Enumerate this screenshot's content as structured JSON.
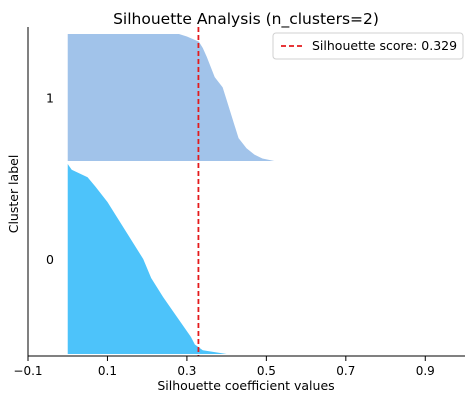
{
  "chart_data": {
    "type": "area",
    "title": "Silhouette Analysis (n_clusters=2)",
    "xlabel": "Silhouette coefficient values",
    "ylabel": "Cluster label",
    "xlim": [
      -0.1,
      1.0
    ],
    "x_ticks": [
      {
        "value": -0.1,
        "label": "−0.1"
      },
      {
        "value": 0.1,
        "label": "0.1"
      },
      {
        "value": 0.3,
        "label": "0.3"
      },
      {
        "value": 0.5,
        "label": "0.5"
      },
      {
        "value": 0.7,
        "label": "0.7"
      },
      {
        "value": 0.9,
        "label": "0.9"
      }
    ],
    "grid": false,
    "legend": {
      "placement": "top-right",
      "entries": [
        {
          "label": "Silhouette score: 0.329",
          "color": "#e41a1c",
          "style": "dashed"
        }
      ]
    },
    "reference_line": {
      "value": 0.329,
      "color": "#e41a1c",
      "style": "dashed"
    },
    "clusters": [
      {
        "label": "0",
        "color": "#4dc3fa",
        "profile": [
          [
            0.0,
            0.4
          ],
          [
            0.02,
            0.34
          ],
          [
            0.05,
            0.32
          ],
          [
            0.09,
            0.31
          ],
          [
            0.15,
            0.29
          ],
          [
            0.21,
            0.27
          ],
          [
            0.3,
            0.24
          ],
          [
            0.4,
            0.21
          ],
          [
            0.5,
            0.19
          ],
          [
            0.6,
            0.16
          ],
          [
            0.7,
            0.13
          ],
          [
            0.8,
            0.1
          ],
          [
            0.88,
            0.07
          ],
          [
            0.93,
            0.05
          ],
          [
            0.97,
            0.01
          ],
          [
            1.0,
            0.0
          ]
        ]
      },
      {
        "label": "1",
        "color": "#a1c3ea",
        "profile": [
          [
            0.0,
            0.52
          ],
          [
            0.02,
            0.49
          ],
          [
            0.05,
            0.47
          ],
          [
            0.1,
            0.45
          ],
          [
            0.18,
            0.43
          ],
          [
            0.28,
            0.42
          ],
          [
            0.38,
            0.41
          ],
          [
            0.48,
            0.4
          ],
          [
            0.58,
            0.39
          ],
          [
            0.66,
            0.37
          ],
          [
            0.74,
            0.36
          ],
          [
            0.82,
            0.35
          ],
          [
            0.89,
            0.34
          ],
          [
            0.94,
            0.33
          ],
          [
            0.98,
            0.3
          ],
          [
            1.0,
            0.28
          ]
        ]
      }
    ]
  }
}
